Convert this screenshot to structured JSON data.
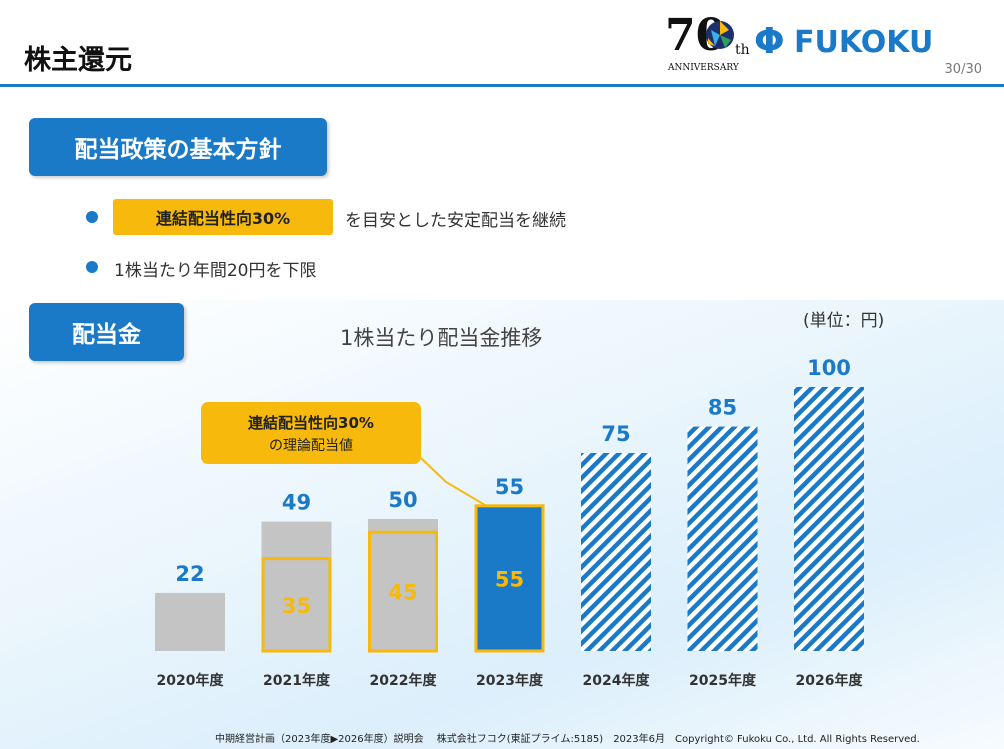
{
  "header": {
    "title": "株主還元",
    "page_number": "30/30"
  },
  "anniversary": {
    "number": "70",
    "suffix": "th",
    "label": "ANNIVERSARY"
  },
  "brand": {
    "symbol": "Φ",
    "name": "FUKOKU",
    "color": "#1a7ac8"
  },
  "policy": {
    "heading": "配当政策の基本方針",
    "highlight": "連結配当性向30%",
    "bullet1_rest": "を目安とした安定配当を継続",
    "bullet2": "1株当たり年間20円を下限"
  },
  "dividend": {
    "heading": "配当金"
  },
  "callout": {
    "line1": "連結配当性向30%",
    "line2": "の理論配当値"
  },
  "chart_data": {
    "type": "bar",
    "title": "1株当たり配当金推移",
    "unit": "(単位：円)",
    "categories": [
      "2020年度",
      "2021年度",
      "2022年度",
      "2023年度",
      "2024年度",
      "2025年度",
      "2026年度"
    ],
    "series": [
      {
        "values": [
          22,
          49,
          50,
          55,
          75,
          85,
          100
        ]
      },
      {
        "values": [
          null,
          35,
          45,
          55,
          null,
          null,
          null
        ]
      }
    ],
    "bar_styles": [
      "actual",
      "actual",
      "actual",
      "plan",
      "target",
      "target",
      "target"
    ],
    "ylim": [
      0,
      100
    ],
    "colors": {
      "actual": "#c4c4c4",
      "plan": "#1a7ac8",
      "target": "#1a7ac8",
      "outline": "#f7b90c",
      "label": "#1a7ac8"
    }
  },
  "footer": {
    "text": "中期経営計画（2023年度▶2026年度）説明会　 株式会社フコク(東証プライム:5185)　2023年6月　Copyright© Fukoku Co., Ltd.  All Rights Reserved."
  }
}
